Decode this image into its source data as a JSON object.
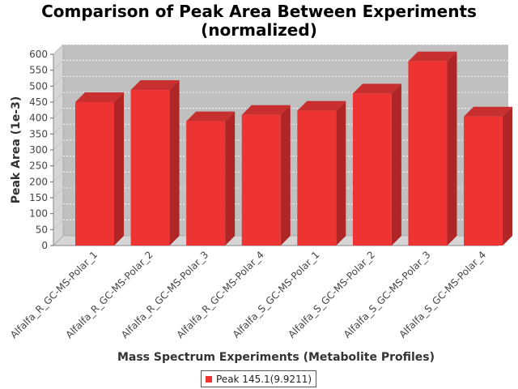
{
  "chart_data": {
    "type": "bar",
    "title": [
      "Comparison of Peak Area Between Experiments",
      "(normalized)"
    ],
    "xlabel": "Mass Spectrum Experiments (Metabolite Profiles)",
    "ylabel": "Peak Area (1e-3)",
    "ylim": [
      0,
      600
    ],
    "yticks": [
      0,
      50,
      100,
      150,
      200,
      250,
      300,
      350,
      400,
      450,
      500,
      550,
      600
    ],
    "categories": [
      "Alfalfa_R_GC-MS-Polar_1",
      "Alfalfa_R_GC-MS-Polar_2",
      "Alfalfa_R_GC-MS-Polar_3",
      "Alfalfa_R_GC-MS-Polar_4",
      "Alfalfa_S_GC-MS-Polar_1",
      "Alfalfa_S_GC-MS-Polar_2",
      "Alfalfa_S_GC-MS-Polar_3",
      "Alfalfa_S_GC-MS-Polar_4"
    ],
    "series": [
      {
        "name": "Peak 145.1(9.9211)",
        "values": [
          450,
          488,
          390,
          410,
          423,
          477,
          578,
          405
        ]
      }
    ],
    "legend_position": "bottom",
    "grid": true,
    "style": "3d",
    "colors": {
      "bar_front": "#ee3333",
      "bar_side": "#b02525",
      "bar_top": "#c83030",
      "plot_background": "#c0c0c0",
      "plot_wall": "#d6d6d6",
      "grid": "#ffffff"
    }
  }
}
